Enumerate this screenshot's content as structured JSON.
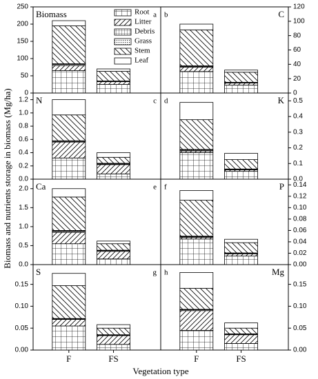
{
  "y_label": "Biomass and nutrients storage in biomass (Mg/ha)",
  "x_label": "Vegetation type",
  "categories": [
    "F",
    "FS"
  ],
  "series": [
    {
      "name": "Root",
      "pattern": "grid"
    },
    {
      "name": "Litter",
      "pattern": "slash"
    },
    {
      "name": "Debris",
      "pattern": "finegrid"
    },
    {
      "name": "Grass",
      "pattern": "dots"
    },
    {
      "name": "Stem",
      "pattern": "backslash"
    },
    {
      "name": "Leaf",
      "pattern": "blank"
    }
  ],
  "chart_data": [
    {
      "type": "bar",
      "stacked": true,
      "title": "Biomass",
      "tag": "a",
      "axis_side": "left",
      "legend": true,
      "ylim": [
        0,
        250
      ],
      "yticks": [
        0,
        50,
        100,
        150,
        200,
        250
      ],
      "values": [
        [
          65,
          15,
          3,
          2,
          110,
          15
        ],
        [
          25,
          8,
          1,
          1,
          28,
          7
        ]
      ]
    },
    {
      "type": "bar",
      "stacked": true,
      "title": "C",
      "tag": "b",
      "axis_side": "right",
      "ylim": [
        0,
        120
      ],
      "yticks": [
        0,
        20,
        40,
        60,
        80,
        100,
        120
      ],
      "values": [
        [
          30,
          6,
          1,
          1,
          50,
          8
        ],
        [
          11,
          3,
          0.5,
          0.5,
          14,
          3
        ]
      ]
    },
    {
      "type": "bar",
      "stacked": true,
      "title": "N",
      "tag": "c",
      "axis_side": "left",
      "ylim": [
        0,
        1.3
      ],
      "yticks": [
        {
          "value": 0,
          "label": "0.0"
        },
        0.2,
        0.4,
        0.6,
        0.8,
        {
          "value": 1,
          "label": "1.0"
        },
        1.2
      ],
      "values": [
        [
          0.32,
          0.24,
          0.01,
          0.01,
          0.39,
          0.23
        ],
        [
          0.08,
          0.14,
          0.01,
          0.01,
          0.09,
          0.07
        ]
      ]
    },
    {
      "type": "bar",
      "stacked": true,
      "title": "K",
      "tag": "d",
      "axis_side": "right",
      "ylim": [
        0,
        0.55
      ],
      "yticks": [
        {
          "value": 0,
          "label": "0.0"
        },
        0.1,
        0.2,
        0.3,
        0.4,
        0.5
      ],
      "values": [
        [
          0.17,
          0.01,
          0.005,
          0.005,
          0.19,
          0.11
        ],
        [
          0.05,
          0.01,
          0.003,
          0.002,
          0.06,
          0.04
        ]
      ]
    },
    {
      "type": "bar",
      "stacked": true,
      "title": "Ca",
      "tag": "e",
      "axis_side": "left",
      "ylim": [
        0,
        2.25
      ],
      "yticks": [
        {
          "value": 0,
          "label": "0.0"
        },
        0.5,
        {
          "value": 1,
          "label": "1.0"
        },
        1.5,
        {
          "value": 2,
          "label": "2.0"
        }
      ],
      "values": [
        [
          0.55,
          0.3,
          0.03,
          0.02,
          0.88,
          0.22
        ],
        [
          0.15,
          0.2,
          0.02,
          0.01,
          0.17,
          0.07
        ]
      ]
    },
    {
      "type": "bar",
      "stacked": true,
      "title": "P",
      "tag": "f",
      "axis_side": "right",
      "ylim": [
        0,
        0.15
      ],
      "yticks": [
        {
          "value": 0,
          "label": "0.00"
        },
        0.02,
        0.04,
        0.06,
        0.08,
        {
          "value": 0.1,
          "label": "0.10"
        },
        0.12,
        0.14
      ],
      "values": [
        [
          0.045,
          0.003,
          0.001,
          0.001,
          0.063,
          0.017
        ],
        [
          0.015,
          0.004,
          0.001,
          0.0005,
          0.018,
          0.006
        ]
      ]
    },
    {
      "type": "bar",
      "stacked": true,
      "title": "S",
      "tag": "g",
      "axis_side": "left",
      "ylim": [
        0,
        0.195
      ],
      "yticks": [
        {
          "value": 0,
          "label": "0.00"
        },
        0.05,
        {
          "value": 0.1,
          "label": "0.10"
        },
        0.15
      ],
      "values": [
        [
          0.055,
          0.015,
          0.001,
          0.001,
          0.075,
          0.028
        ],
        [
          0.013,
          0.02,
          0.001,
          0.001,
          0.015,
          0.008
        ]
      ]
    },
    {
      "type": "bar",
      "stacked": true,
      "title": "Mg",
      "tag": "h",
      "axis_side": "right",
      "ylim": [
        0,
        0.195
      ],
      "yticks": [
        {
          "value": 0,
          "label": "0.00"
        },
        0.05,
        {
          "value": 0.1,
          "label": "0.10"
        },
        0.15
      ],
      "values": [
        [
          0.045,
          0.045,
          0.002,
          0.001,
          0.048,
          0.036
        ],
        [
          0.015,
          0.02,
          0.001,
          0.001,
          0.013,
          0.012
        ]
      ]
    }
  ]
}
